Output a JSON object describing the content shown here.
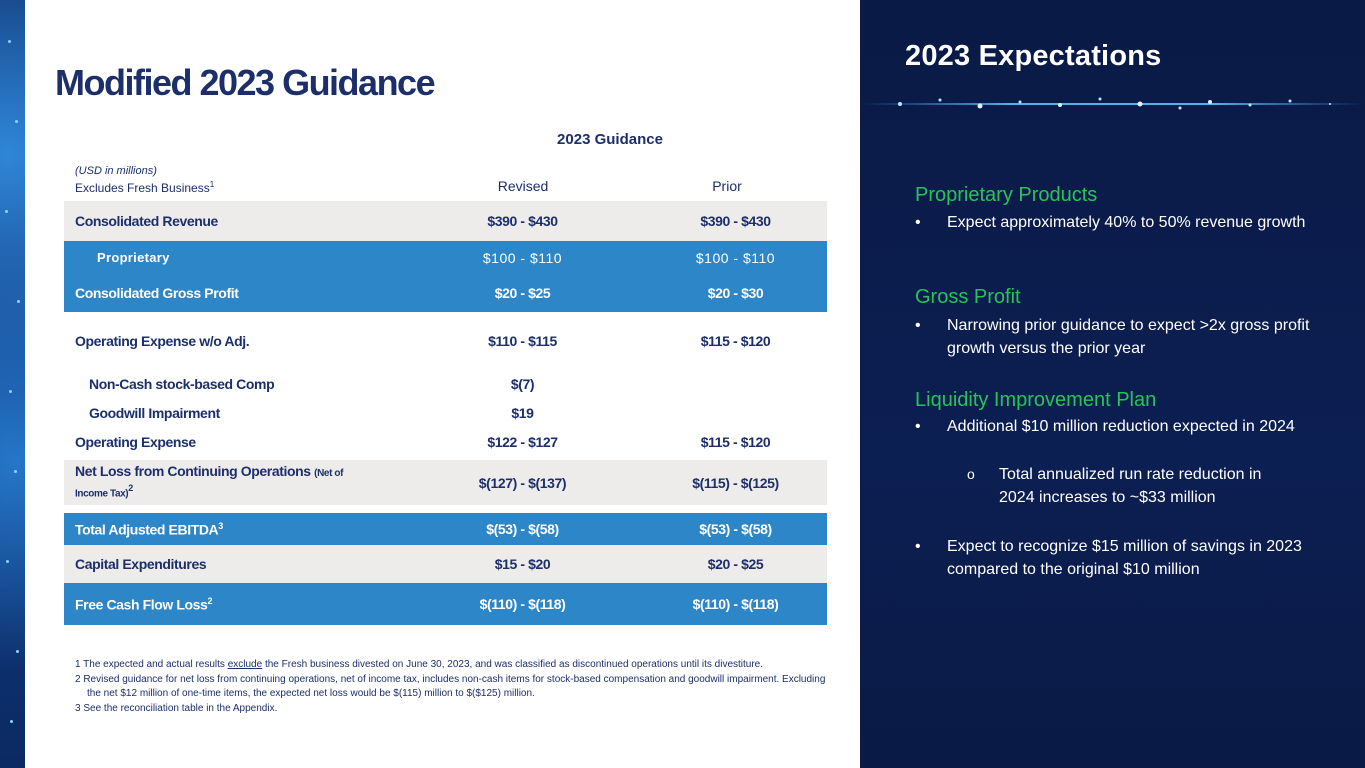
{
  "title": "Modified 2023 Guidance",
  "table": {
    "group_header": "2023 Guidance",
    "unit_note": "(USD in millions)",
    "excludes_note": "Excludes Fresh Business",
    "excludes_sup": "1",
    "col_revised": "Revised",
    "col_prior": "Prior",
    "rows": [
      {
        "label": "Consolidated Revenue",
        "revised": "$390 - $430",
        "prior": "$390 - $430"
      },
      {
        "label": "Proprietary",
        "revised": "$100 - $110",
        "prior": "$100 - $110"
      },
      {
        "label": "Consolidated Gross Profit",
        "revised": "$20 - $25",
        "prior": "$20 - $30"
      },
      {
        "label": "Operating Expense w/o Adj.",
        "revised": "$110 - $115",
        "prior": "$115 - $120"
      },
      {
        "label": "Non-Cash stock-based Comp",
        "revised": "$(7)",
        "prior": ""
      },
      {
        "label": "Goodwill Impairment",
        "revised": "$19",
        "prior": ""
      },
      {
        "label": "Operating Expense",
        "revised": "$122 - $127",
        "prior": "$115 - $120"
      },
      {
        "label": "Net Loss from Continuing Operations",
        "label_note": "(Net of",
        "label_note2": "Income Tax)",
        "label_sup": "2",
        "revised": "$(127) - $(137)",
        "prior": "$(115) - $(125)"
      },
      {
        "label": "Total Adjusted  EBITDA",
        "label_sup": "3",
        "revised": "$(53) - $(58)",
        "prior": "$(53) - $(58)"
      },
      {
        "label": "Capital Expenditures",
        "revised": "$15 - $20",
        "prior": "$20 - $25"
      },
      {
        "label": "Free Cash Flow Loss",
        "label_sup": "2",
        "revised": "$(110) - $(118)",
        "prior": "$(110) - $(118)"
      }
    ]
  },
  "footnotes": {
    "fn1_a": "1 The expected and actual results ",
    "fn1_u": "exclude",
    "fn1_b": " the Fresh business divested on June 30, 2023, and was classified as discontinued operations until its divestiture.",
    "fn2": "2 Revised guidance for net loss from continuing operations, net of income tax, includes non-cash items for stock-based compensation and goodwill impairment. Excluding the net $12 million of one-time items, the expected net loss would be $(115) million to $($125) million.",
    "fn3": "3 See the reconciliation table in the Appendix."
  },
  "right": {
    "title": "2023 Expectations",
    "sections": [
      {
        "heading": "Proprietary Products",
        "bullet": "Expect approximately 40% to 50% revenue growth"
      },
      {
        "heading": "Gross Profit",
        "bullet": "Narrowing prior guidance to expect >2x gross profit growth versus the prior year"
      },
      {
        "heading": "Liquidity Improvement Plan",
        "bullet": "Additional $10 million reduction expected in 2024",
        "sub": "Total annualized run rate reduction in 2024 increases to ~$33 million",
        "bullet2": "Expect to recognize $15 million of savings  in 2023 compared to the original $10 million"
      }
    ],
    "bullet_mark": "•",
    "sub_mark": "o"
  },
  "colors": {
    "navy": "#1c2f6b",
    "blue": "#2c86c8",
    "gray": "#eeeceb",
    "green": "#27c35a",
    "dark": "#0b1d4c"
  }
}
